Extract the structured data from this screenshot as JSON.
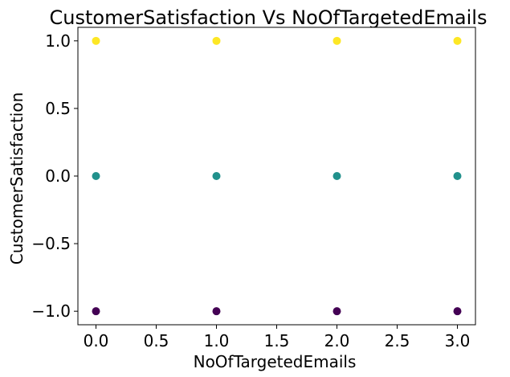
{
  "chart_data": {
    "type": "scatter",
    "title": "CustomerSatisfaction Vs NoOfTargetedEmails",
    "xlabel": "NoOfTargetedEmails",
    "ylabel": "CustomerSatisfaction",
    "xlim": [
      -0.15,
      3.15
    ],
    "ylim": [
      -1.1,
      1.1
    ],
    "xticks": [
      0.0,
      0.5,
      1.0,
      1.5,
      2.0,
      2.5,
      3.0
    ],
    "xtick_labels": [
      "0.0",
      "0.5",
      "1.0",
      "1.5",
      "2.0",
      "2.5",
      "3.0"
    ],
    "yticks": [
      -1.0,
      -0.5,
      0.0,
      0.5,
      1.0
    ],
    "ytick_labels": [
      "−1.0",
      "−0.5",
      "0.0",
      "0.5",
      "1.0"
    ],
    "grid": false,
    "point_colors": {
      "-1": "#440154",
      "0": "#21918c",
      "1": "#fde725"
    },
    "points": [
      {
        "x": 0,
        "y": 1
      },
      {
        "x": 1,
        "y": 1
      },
      {
        "x": 2,
        "y": 1
      },
      {
        "x": 3,
        "y": 1
      },
      {
        "x": 0,
        "y": 0
      },
      {
        "x": 1,
        "y": 0
      },
      {
        "x": 2,
        "y": 0
      },
      {
        "x": 3,
        "y": 0
      },
      {
        "x": 0,
        "y": -1
      },
      {
        "x": 1,
        "y": -1
      },
      {
        "x": 2,
        "y": -1
      },
      {
        "x": 3,
        "y": -1
      }
    ]
  }
}
